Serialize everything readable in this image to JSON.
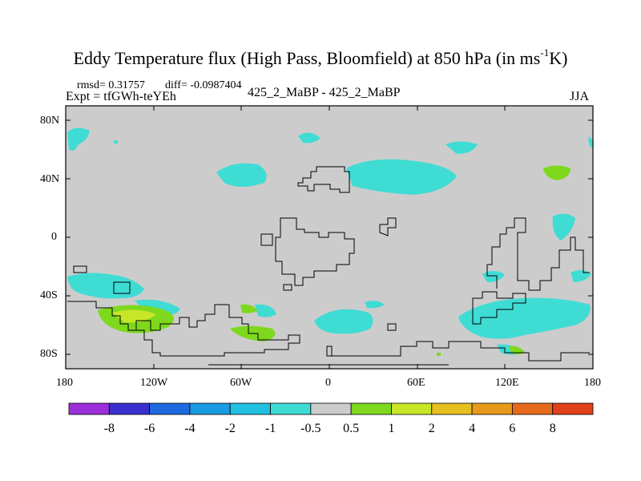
{
  "title": {
    "main": "Eddy Temperature flux (High Pass, Bloomfield) at 850 hPa (in ms",
    "sup": "-1",
    "tail": "K)"
  },
  "stats": {
    "rmsd": "rmsd= 0.31757",
    "diff": "diff= -0.0987404"
  },
  "expt": "Expt = tfGWh-teYEh",
  "run": "425_2_MaBP - 425_2_MaBP",
  "season": "JJA",
  "lat_labels": [
    "80N",
    "40N",
    "0",
    "40S",
    "80S"
  ],
  "lon_labels": [
    "180",
    "120W",
    "60W",
    "0",
    "60E",
    "120E",
    "180"
  ],
  "colorbar": {
    "labels": [
      "-8",
      "-6",
      "-4",
      "-2",
      "-1",
      "-0.5",
      "0.5",
      "1",
      "2",
      "4",
      "6",
      "8"
    ],
    "colors": [
      "#9b30d8",
      "#3a2fd0",
      "#1f6ae0",
      "#1a9ae0",
      "#22c0e0",
      "#3fdcd4",
      "#cccccc",
      "#7ed81e",
      "#c8e628",
      "#e6c020",
      "#e69a1c",
      "#e66a1c",
      "#e0401a"
    ]
  },
  "colors": {
    "land_outline": "#000000",
    "background_field": "#cccccc"
  }
}
